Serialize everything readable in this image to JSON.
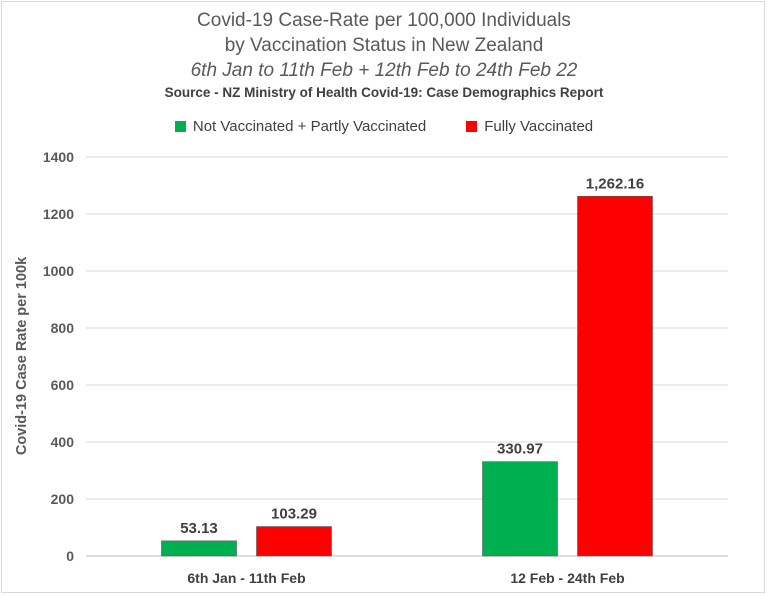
{
  "chart_data": {
    "type": "bar",
    "title_lines": [
      "Covid-19 Case-Rate per 100,000 Individuals",
      "by Vaccination Status in New Zealand"
    ],
    "subtitle": "6th Jan to 11th Feb + 12th Feb to 24th Feb 22",
    "source": "Source - NZ Ministry of Health Covid-19: Case Demographics Report",
    "categories": [
      "6th Jan - 11th Feb",
      "12 Feb - 24th Feb"
    ],
    "series": [
      {
        "name": "Not Vaccinated + Partly Vaccinated",
        "color": "#00b050",
        "values": [
          53.13,
          330.97
        ],
        "labels": [
          "53.13",
          "330.97"
        ]
      },
      {
        "name": "Fully Vaccinated",
        "color": "#ff0000",
        "values": [
          103.29,
          1262.16
        ],
        "labels": [
          "103.29",
          "1,262.16"
        ]
      }
    ],
    "xlabel": "",
    "ylabel": "Covid-19 Case Rate per 100k",
    "ylim": [
      0,
      1400
    ],
    "yticks": [
      0,
      200,
      400,
      600,
      800,
      1000,
      1200,
      1400
    ],
    "grid": true,
    "legend_position": "top"
  }
}
